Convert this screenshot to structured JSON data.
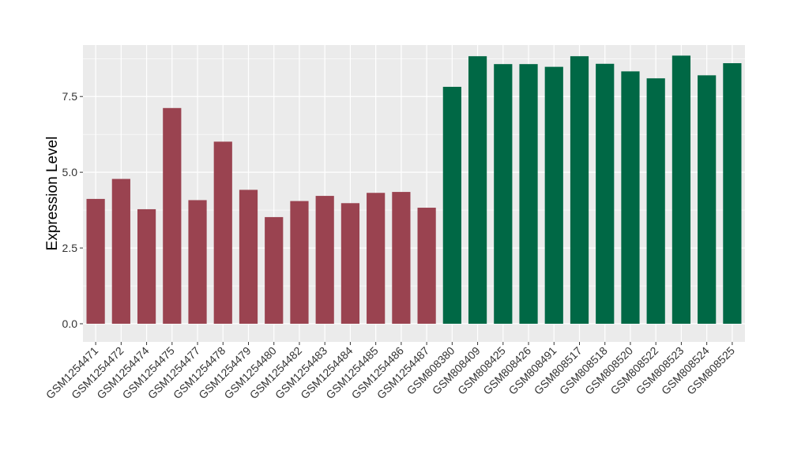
{
  "chart_data": {
    "type": "bar",
    "title": "",
    "xlabel": "",
    "ylabel": "Expression Level",
    "ylim": [
      -0.6,
      9.2
    ],
    "yticks": [
      0.0,
      2.5,
      5.0,
      7.5
    ],
    "ytick_labels": [
      "0.0",
      "2.5",
      "5.0",
      "7.5"
    ],
    "grid": true,
    "legend": "none",
    "categories": [
      "GSM1254471",
      "GSM1254472",
      "GSM1254474",
      "GSM1254475",
      "GSM1254477",
      "GSM1254478",
      "GSM1254479",
      "GSM1254480",
      "GSM1254482",
      "GSM1254483",
      "GSM1254484",
      "GSM1254485",
      "GSM1254486",
      "GSM1254487",
      "GSM808380",
      "GSM808409",
      "GSM808425",
      "GSM808426",
      "GSM808491",
      "GSM808517",
      "GSM808518",
      "GSM808520",
      "GSM808522",
      "GSM808523",
      "GSM808524",
      "GSM808525"
    ],
    "values": [
      4.12,
      4.78,
      3.78,
      7.12,
      4.08,
      6.01,
      4.42,
      3.52,
      4.05,
      4.22,
      3.98,
      4.32,
      4.35,
      3.83,
      7.82,
      8.83,
      8.57,
      8.57,
      8.48,
      8.83,
      8.58,
      8.33,
      8.1,
      8.85,
      8.2,
      8.6
    ],
    "groups": [
      "A",
      "A",
      "A",
      "A",
      "A",
      "A",
      "A",
      "A",
      "A",
      "A",
      "A",
      "A",
      "A",
      "A",
      "B",
      "B",
      "B",
      "B",
      "B",
      "B",
      "B",
      "B",
      "B",
      "B",
      "B",
      "B"
    ],
    "group_colors": {
      "A": "#9a4350",
      "B": "#006845"
    },
    "panel_background": "#ebebeb",
    "grid_color": "#ffffff"
  }
}
